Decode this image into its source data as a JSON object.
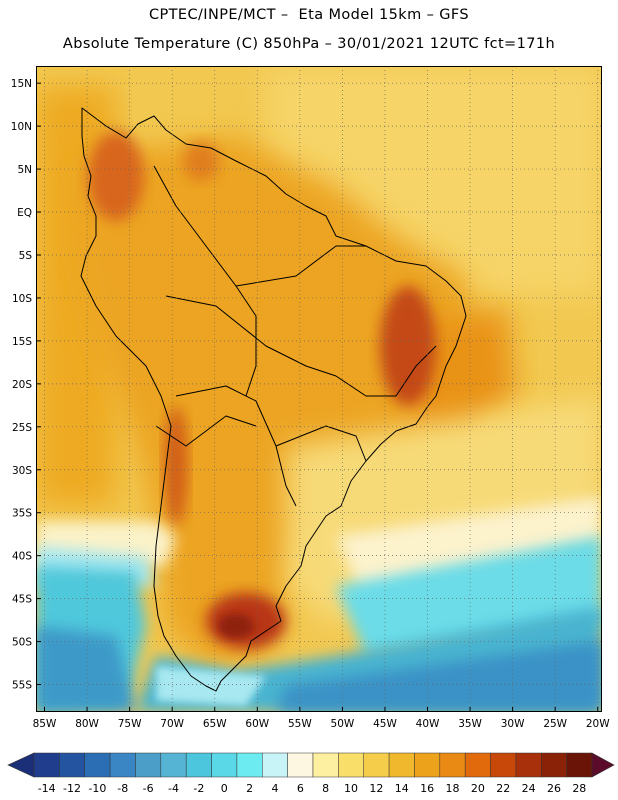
{
  "header": {
    "line1": "CPTEC/INPE/MCT –  Eta Model 15km – GFS",
    "line2": "Absolute Temperature (C) 850hPa – 30/01/2021 12UTC fct=171h"
  },
  "map": {
    "lat_labels": [
      "15N",
      "10N",
      "5N",
      "EQ",
      "5S",
      "10S",
      "15S",
      "20S",
      "25S",
      "30S",
      "35S",
      "40S",
      "45S",
      "50S",
      "55S"
    ],
    "lat_values": [
      15,
      10,
      5,
      0,
      -5,
      -10,
      -15,
      -20,
      -25,
      -30,
      -35,
      -40,
      -45,
      -50,
      -55
    ],
    "lon_labels": [
      "85W",
      "80W",
      "75W",
      "70W",
      "65W",
      "60W",
      "55W",
      "50W",
      "45W",
      "40W",
      "35W",
      "30W",
      "25W",
      "20W"
    ],
    "lon_values": [
      -85,
      -80,
      -75,
      -70,
      -65,
      -60,
      -55,
      -50,
      -45,
      -40,
      -35,
      -30,
      -25,
      -20
    ],
    "lat_range": [
      -58.2,
      17.0
    ],
    "lon_range": [
      -86.0,
      -19.5
    ]
  },
  "colorbar": {
    "labels": [
      "-14",
      "-12",
      "-10",
      "-8",
      "-6",
      "-4",
      "-2",
      "0",
      "2",
      "4",
      "6",
      "8",
      "10",
      "12",
      "14",
      "16",
      "18",
      "20",
      "22",
      "24",
      "26",
      "28"
    ],
    "colors": [
      "#1f3d8c",
      "#2454a0",
      "#2c6eb4",
      "#3a86c4",
      "#4a9ec8",
      "#55b4d4",
      "#4bc6dc",
      "#5ad8e8",
      "#6cecf0",
      "#c8f4f8",
      "#fdf6e0",
      "#fdf0a0",
      "#f9de6a",
      "#f6cd4a",
      "#f0b82c",
      "#eda21c",
      "#e88a14",
      "#e06a0c",
      "#c8480a",
      "#a8300a",
      "#8a2208",
      "#6a1408"
    ]
  }
}
